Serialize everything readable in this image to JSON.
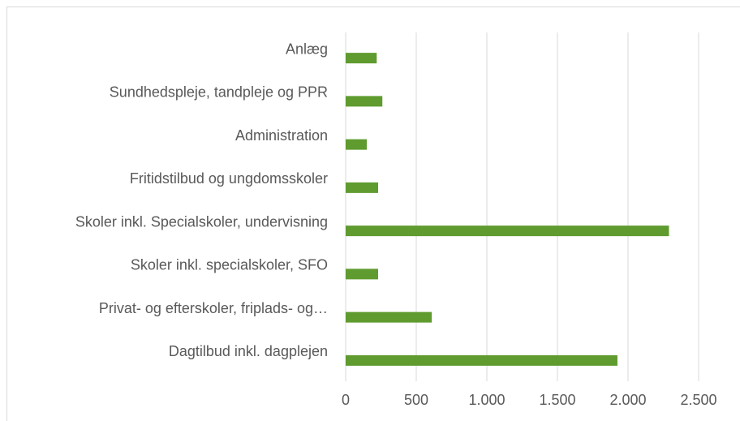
{
  "chart_data": {
    "type": "barh",
    "categories": [
      "Anlæg",
      "Sundhedspleje, tandpleje og PPR",
      "Administration",
      "Fritidstilbud og ungdomsskoler",
      "Skoler inkl. Specialskoler, undervisning",
      "Skoler inkl. specialskoler, SFO",
      "Privat- og efterskoler, friplads- og…",
      "Dagtilbud inkl. dagplejen"
    ],
    "values": [
      220,
      260,
      150,
      230,
      2290,
      230,
      610,
      1925
    ],
    "color": "#5f9b2f",
    "xlim": [
      0,
      2500
    ],
    "xticks": [
      0,
      500,
      {
        "value": 1000,
        "label": "1.000"
      },
      {
        "value": 1500,
        "label": "1.500"
      },
      {
        "value": 2000,
        "label": "2.000"
      },
      {
        "value": 2500,
        "label": "2.500"
      }
    ],
    "grid": true
  }
}
